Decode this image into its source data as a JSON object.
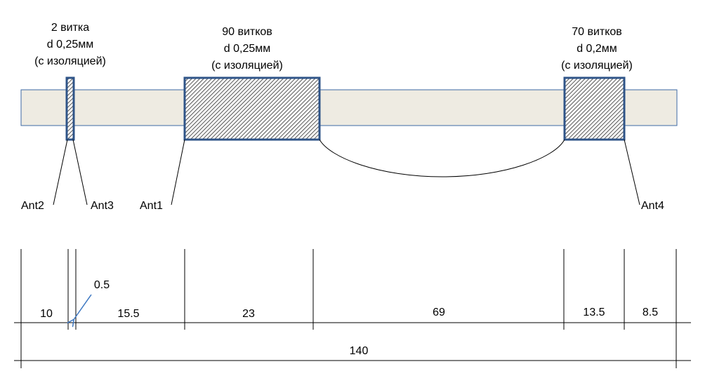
{
  "coils": [
    {
      "id": "coil-1",
      "turns": "2 витка",
      "wire": "d 0,25мм",
      "insulation": "(с изоляцией)"
    },
    {
      "id": "coil-2",
      "turns": "90 витков",
      "wire": "d 0,25мм",
      "insulation": "(с изоляцией)"
    },
    {
      "id": "coil-3",
      "turns": "70 витков",
      "wire": "d 0,2мм",
      "insulation": "(с изоляцией)"
    }
  ],
  "terminals": [
    "Ant2",
    "Ant3",
    "Ant1",
    "Ant4"
  ],
  "dimensions": {
    "segments": [
      "10",
      "0.5",
      "15.5",
      "23",
      "69",
      "13.5",
      "8.5"
    ],
    "total": "140"
  },
  "colors": {
    "rod_fill": "#eeebe2",
    "rod_stroke": "#3e6aa4",
    "coil_stroke": "#2f5488",
    "hatch": "#2c2c2c",
    "line": "#000000",
    "pointer": "#3e78c2"
  }
}
